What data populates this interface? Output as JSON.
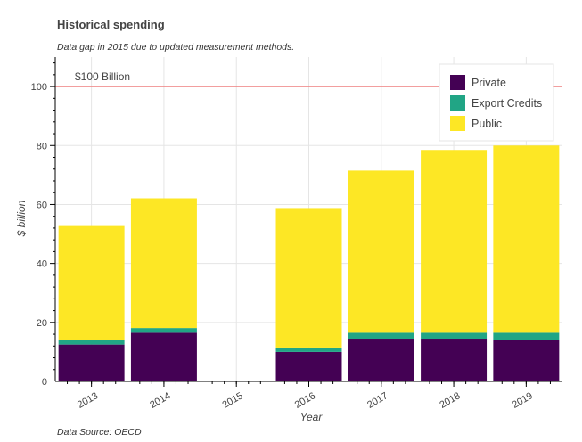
{
  "chart_data": {
    "type": "bar",
    "stacked": true,
    "title": "Historical spending",
    "subtitle": "Data gap in 2015 due to updated measurement methods.",
    "xlabel": "Year",
    "ylabel": "$ billion",
    "source": "Data Source: OECD",
    "categories": [
      "2013",
      "2014",
      "2015",
      "2016",
      "2017",
      "2018",
      "2019"
    ],
    "series": [
      {
        "name": "Private",
        "color": "#440154",
        "values": [
          12.5,
          16.5,
          null,
          10,
          14.5,
          14.5,
          14
        ]
      },
      {
        "name": "Export Credits",
        "color": "#21a585",
        "values": [
          1.7,
          1.6,
          null,
          1.5,
          2,
          2,
          2.5
        ]
      },
      {
        "name": "Public",
        "color": "#fde725",
        "values": [
          38.5,
          44,
          null,
          47.3,
          55,
          62,
          63.5
        ]
      }
    ],
    "ylim": [
      0,
      110
    ],
    "yticks": [
      0,
      20,
      40,
      60,
      80,
      100
    ],
    "grid": true,
    "legend_position": "top-right",
    "reference_line": {
      "y": 100,
      "label": "$100 Billion",
      "color": "#f08080"
    }
  }
}
